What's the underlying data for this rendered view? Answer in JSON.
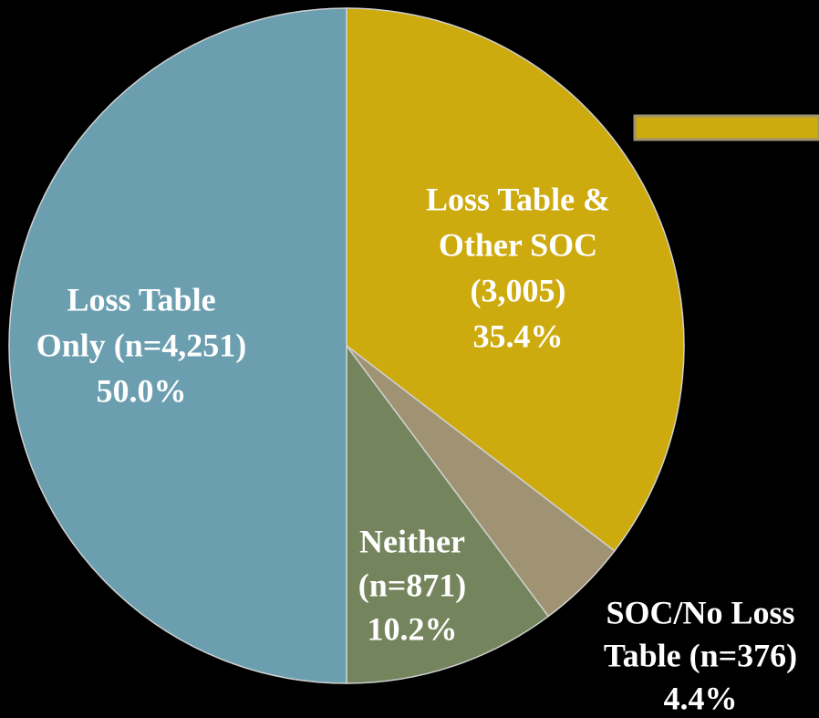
{
  "chart_data": {
    "type": "pie",
    "categories": [
      [
        "Loss Table &",
        "Other SOC",
        "(3,005)"
      ],
      [
        "SOC/No Loss",
        "Table (n=376)"
      ],
      [
        "Neither",
        "(n=871)"
      ],
      [
        "Loss Table",
        "Only (n=4,251)"
      ]
    ],
    "values": [
      35.4,
      4.4,
      10.2,
      50.0
    ],
    "value_labels": [
      "35.4%",
      "4.4%",
      "10.2%",
      "50.0%"
    ],
    "colors": [
      "#cdab0e",
      "#a09373",
      "#74845c",
      "#6b9fb0"
    ]
  }
}
